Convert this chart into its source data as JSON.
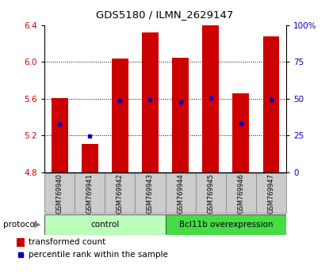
{
  "title": "GDS5180 / ILMN_2629147",
  "samples": [
    "GSM769940",
    "GSM769941",
    "GSM769942",
    "GSM769943",
    "GSM769944",
    "GSM769945",
    "GSM769946",
    "GSM769947"
  ],
  "bar_tops": [
    5.61,
    5.11,
    6.04,
    6.32,
    6.05,
    6.4,
    5.66,
    6.28
  ],
  "percentile_values": [
    5.32,
    5.19,
    5.58,
    5.59,
    5.56,
    5.61,
    5.33,
    5.59
  ],
  "bar_bottom": 4.8,
  "ylim_left": [
    4.8,
    6.4
  ],
  "ylim_right": [
    0,
    100
  ],
  "yticks_left": [
    4.8,
    5.2,
    5.6,
    6.0,
    6.4
  ],
  "yticks_right": [
    0,
    25,
    50,
    75,
    100
  ],
  "ytick_labels_right": [
    "0",
    "25",
    "50",
    "75",
    "100%"
  ],
  "bar_color": "#cc0000",
  "dot_color": "#0000bb",
  "group1_label": "control",
  "group2_label": "Bcl11b overexpression",
  "group1_color": "#bbffbb",
  "group2_color": "#44dd44",
  "protocol_label": "protocol",
  "legend_bar_label": "transformed count",
  "legend_dot_label": "percentile rank within the sample",
  "tick_color_left": "#cc0000",
  "tick_color_right": "#0000bb",
  "grid_linestyle": "dotted",
  "grid_color": "#000000",
  "grid_linewidth": 0.7,
  "bar_width": 0.55,
  "sample_box_color": "#cccccc",
  "sample_box_edge": "#888888"
}
